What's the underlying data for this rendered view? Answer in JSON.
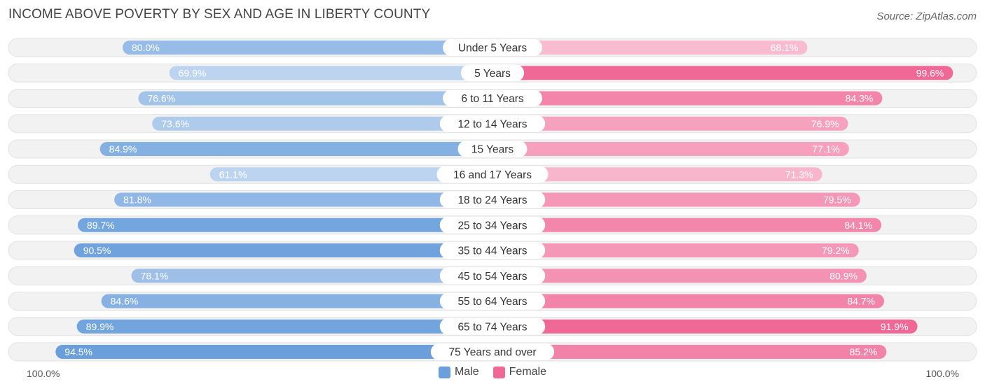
{
  "chart_data": {
    "type": "bar",
    "orientation": "horizontal-diverging",
    "title": "INCOME ABOVE POVERTY BY SEX AND AGE IN LIBERTY COUNTY",
    "source": "Source: ZipAtlas.com",
    "categories": [
      "Under 5 Years",
      "5 Years",
      "6 to 11 Years",
      "12 to 14 Years",
      "15 Years",
      "16 and 17 Years",
      "18 to 24 Years",
      "25 to 34 Years",
      "35 to 44 Years",
      "45 to 54 Years",
      "55 to 64 Years",
      "65 to 74 Years",
      "75 Years and over"
    ],
    "series": [
      {
        "name": "Male",
        "color": "#6a9fdc",
        "values": [
          80.0,
          69.9,
          76.6,
          73.6,
          84.9,
          61.1,
          81.8,
          89.7,
          90.5,
          78.1,
          84.6,
          89.9,
          94.5
        ],
        "labels": [
          "80.0%",
          "69.9%",
          "76.6%",
          "73.6%",
          "84.9%",
          "61.1%",
          "81.8%",
          "89.7%",
          "90.5%",
          "78.1%",
          "84.6%",
          "89.9%",
          "94.5%"
        ]
      },
      {
        "name": "Female",
        "color": "#f06896",
        "values": [
          68.1,
          99.6,
          84.3,
          76.9,
          77.1,
          71.3,
          79.5,
          84.1,
          79.2,
          80.9,
          84.7,
          91.9,
          85.2
        ],
        "labels": [
          "68.1%",
          "99.6%",
          "84.3%",
          "76.9%",
          "77.1%",
          "71.3%",
          "79.5%",
          "84.1%",
          "79.2%",
          "80.9%",
          "84.7%",
          "91.9%",
          "85.2%"
        ]
      }
    ],
    "xlim": [
      0,
      100
    ],
    "axis_left_label": "100.0%",
    "axis_right_label": "100.0%",
    "legend": {
      "position": "bottom-center",
      "labels": [
        "Male",
        "Female"
      ]
    }
  }
}
